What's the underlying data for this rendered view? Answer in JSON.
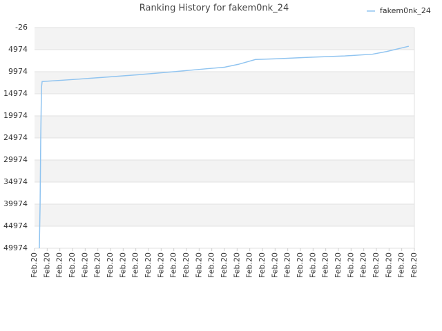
{
  "chart_data": {
    "type": "line",
    "title": "Ranking History for fakem0nk_24",
    "series": [
      {
        "name": "fakem0nk_24",
        "color": "#90c4f0",
        "x": [
          0.38,
          0.44,
          0.49,
          0.55,
          0.6,
          2.73,
          5.45,
          8.18,
          10.9,
          13.6,
          15.0,
          16.1,
          17.45,
          19.1,
          21.8,
          24.5,
          26.7,
          27.8,
          29.56
        ],
        "values": [
          49974,
          40000,
          25000,
          13500,
          12200,
          11800,
          11250,
          10650,
          10000,
          9300,
          8950,
          8300,
          7200,
          7050,
          6700,
          6400,
          6000,
          5400,
          4200
        ]
      }
    ],
    "xlim": [
      0,
      30
    ],
    "xticks": [
      {
        "value": 0,
        "label": "Feb.20"
      },
      {
        "value": 1,
        "label": "Feb.20"
      },
      {
        "value": 2,
        "label": "Feb.20"
      },
      {
        "value": 3,
        "label": "Feb.20"
      },
      {
        "value": 4,
        "label": "Feb.20"
      },
      {
        "value": 5,
        "label": "Feb.20"
      },
      {
        "value": 6,
        "label": "Feb.20"
      },
      {
        "value": 7,
        "label": "Feb.20"
      },
      {
        "value": 8,
        "label": "Feb.20"
      },
      {
        "value": 9,
        "label": "Feb.20"
      },
      {
        "value": 10,
        "label": "Feb.20"
      },
      {
        "value": 11,
        "label": "Feb.20"
      },
      {
        "value": 12,
        "label": "Feb.20"
      },
      {
        "value": 13,
        "label": "Feb.20"
      },
      {
        "value": 14,
        "label": "Feb.20"
      },
      {
        "value": 15,
        "label": "Feb.20"
      },
      {
        "value": 16,
        "label": "Feb.20"
      },
      {
        "value": 17,
        "label": "Feb.20"
      },
      {
        "value": 18,
        "label": "Feb.20"
      },
      {
        "value": 19,
        "label": "Feb.20"
      },
      {
        "value": 20,
        "label": "Feb.20"
      },
      {
        "value": 21,
        "label": "Feb.20"
      },
      {
        "value": 22,
        "label": "Feb.20"
      },
      {
        "value": 23,
        "label": "Feb.20"
      },
      {
        "value": 24,
        "label": "Feb.20"
      },
      {
        "value": 25,
        "label": "Feb.20"
      },
      {
        "value": 26,
        "label": "Feb.20"
      },
      {
        "value": 27,
        "label": "Feb.20"
      },
      {
        "value": 28,
        "label": "Feb.20"
      },
      {
        "value": 29,
        "label": "Feb.20"
      },
      {
        "value": 30,
        "label": "Feb.20"
      }
    ],
    "ylim": [
      -26,
      49974
    ],
    "y_inverted": true,
    "yticks": [
      -26,
      4974,
      9974,
      14974,
      19974,
      24974,
      29974,
      34974,
      39974,
      44974,
      49974
    ],
    "grid": true,
    "legend": "top-right"
  }
}
